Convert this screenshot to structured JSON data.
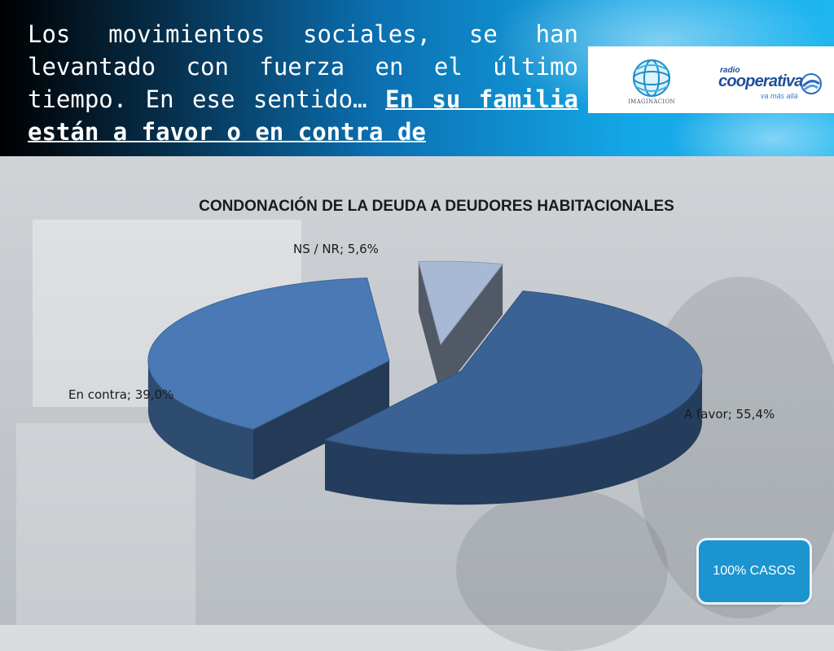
{
  "header": {
    "title_plain": "Los movimientos sociales, se han levantado con fuerza en el último tiempo. En ese sentido… ",
    "title_highlight": "En su familia están a favor o en contra de"
  },
  "logos": {
    "imaginacion_text": "IMAGINACION",
    "coop_radio": "radio",
    "coop_word": "cooperativa",
    "coop_tag": "va más allá"
  },
  "badge": {
    "label": "100% CASOS"
  },
  "colors": {
    "a_favor": "#3b6294",
    "en_contra": "#4a79b5",
    "ns_nr": "#a8b9d6"
  },
  "chart_data": {
    "type": "pie",
    "title": "CONDONACIÓN DE LA DEUDA A DEUDORES HABITACIONALES",
    "exploded": true,
    "three_d": true,
    "legend": "none",
    "slices": [
      {
        "name": "A favor",
        "value": 55.4,
        "label": "A favor; 55,4%"
      },
      {
        "name": "En contra",
        "value": 39.0,
        "label": "En contra; 39,0%"
      },
      {
        "name": "NS / NR",
        "value": 5.6,
        "label": "NS / NR; 5,6%"
      }
    ]
  }
}
